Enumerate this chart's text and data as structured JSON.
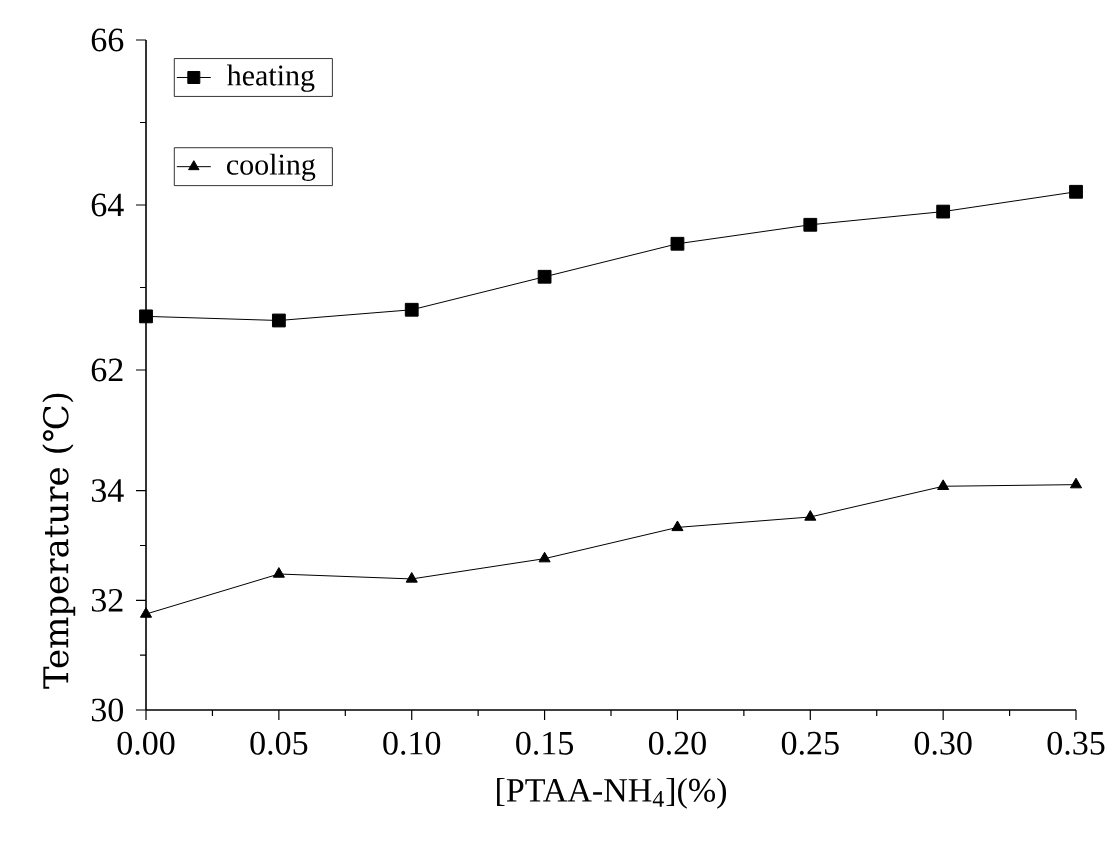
{
  "chart_data": [
    {
      "type": "line",
      "x": [
        0,
        0.05,
        0.1,
        0.15,
        0.2,
        0.25,
        0.3,
        0.35
      ],
      "xlim": [
        0,
        0.35
      ],
      "ylim": [
        62,
        66
      ],
      "yticks": [
        62,
        64,
        66
      ],
      "tick_labels": "y",
      "legend": "top left",
      "series": [
        {
          "name": "heating",
          "color": "#000000",
          "marker": "square",
          "values": [
            62.65,
            62.6,
            62.73,
            63.13,
            63.53,
            63.76,
            63.92,
            64.16
          ]
        }
      ]
    },
    {
      "type": "line",
      "x": [
        0,
        0.05,
        0.1,
        0.15,
        0.2,
        0.25,
        0.3,
        0.35
      ],
      "xlim": [
        0,
        0.35
      ],
      "ylim": [
        30,
        36.2
      ],
      "yticks": [
        30,
        32,
        34
      ],
      "xticks": [
        {
          "value": 0,
          "label": "0.00"
        },
        {
          "value": 0.05,
          "label": "0.05"
        },
        {
          "value": 0.1,
          "label": "0.10"
        },
        {
          "value": 0.15,
          "label": "0.15"
        },
        {
          "value": 0.2,
          "label": "0.20"
        },
        {
          "value": 0.25,
          "label": "0.25"
        },
        {
          "value": 0.3,
          "label": "0.30"
        },
        {
          "value": 0.35,
          "label": "0.35"
        }
      ],
      "xlabel": "[PTAA-NH$_{4}$](%)",
      "ylabel": "Temperature (℃)",
      "legend": "top left",
      "series": [
        {
          "name": "cooling",
          "color": "#000000",
          "marker": "triangle",
          "values": [
            31.75,
            32.48,
            32.39,
            32.76,
            33.33,
            33.52,
            34.08,
            34.11
          ]
        }
      ]
    }
  ]
}
